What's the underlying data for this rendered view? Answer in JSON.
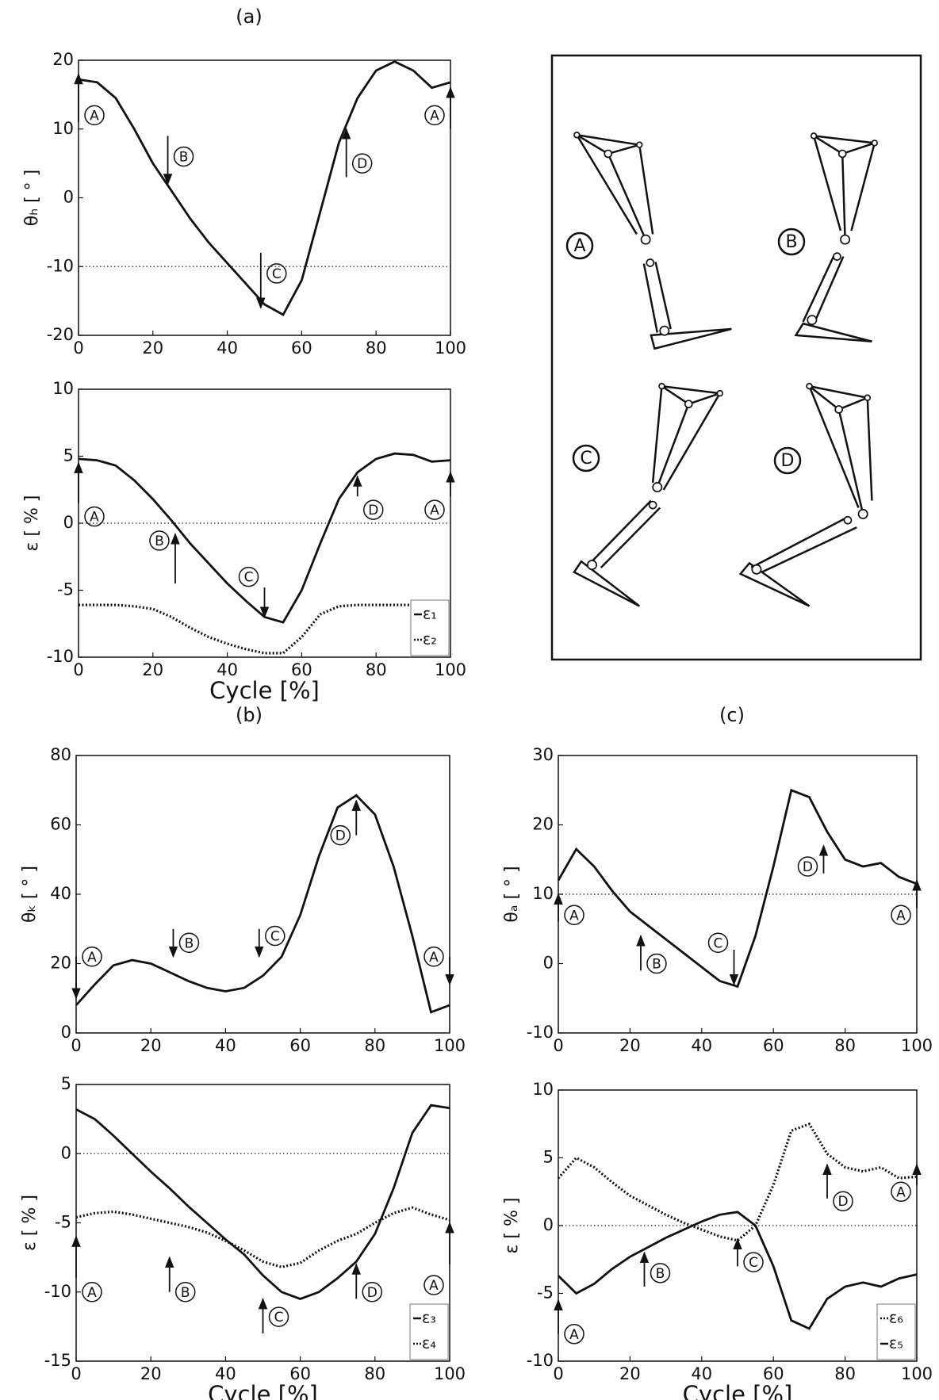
{
  "panel_titles": [
    "(a)",
    "(b)",
    "(c)"
  ],
  "diagram": {
    "labels": [
      "A",
      "B",
      "C",
      "D"
    ]
  },
  "chart_data": [
    {
      "type": "line",
      "ylabel": "θₕ [ ° ]",
      "xlim": [
        0,
        100
      ],
      "xticks": [
        0,
        20,
        40,
        60,
        80,
        100
      ],
      "ylim": [
        -20,
        20
      ],
      "yticks": [
        -20,
        -10,
        0,
        10,
        20
      ],
      "reference_lines": [
        -10
      ],
      "x": [
        0,
        5,
        10,
        15,
        20,
        25,
        30,
        35,
        40,
        45,
        50,
        55,
        60,
        65,
        70,
        75,
        80,
        85,
        90,
        95,
        100
      ],
      "color": "#111111",
      "values": [
        17.2,
        16.8,
        14.5,
        10,
        5,
        1,
        -3,
        -6.5,
        -9.5,
        -12.5,
        -15.5,
        -17,
        -12,
        -2,
        8,
        14.5,
        18.5,
        19.8,
        18.5,
        16,
        16.8
      ],
      "annotations": [
        {
          "text": "A",
          "x": 0
        },
        {
          "text": "B",
          "x": 24
        },
        {
          "text": "C",
          "x": 49
        },
        {
          "text": "D",
          "x": 72
        },
        {
          "text": "A",
          "x": 100
        }
      ]
    },
    {
      "type": "line",
      "ylabel": "ε [ % ]",
      "xlabel": "Cycle [%]",
      "xlim": [
        0,
        100
      ],
      "xticks": [
        0,
        20,
        40,
        60,
        80,
        100
      ],
      "ylim": [
        -10,
        10
      ],
      "yticks": [
        -10,
        -5,
        0,
        5,
        10
      ],
      "reference_lines": [
        0
      ],
      "legend": "lower right",
      "x": [
        0,
        5,
        10,
        15,
        20,
        25,
        30,
        35,
        40,
        45,
        50,
        55,
        60,
        65,
        70,
        75,
        80,
        85,
        90,
        95,
        100
      ],
      "series": [
        {
          "name": "ε₁",
          "color": "#111111",
          "style": "solid",
          "values": [
            4.8,
            4.7,
            4.3,
            3.2,
            1.8,
            0.2,
            -1.5,
            -3,
            -4.5,
            -5.8,
            -7,
            -7.4,
            -5,
            -1.5,
            1.8,
            3.8,
            4.8,
            5.2,
            5.1,
            4.6,
            4.7
          ]
        },
        {
          "name": "ε₂",
          "color": "#111111",
          "style": "dotted",
          "values": [
            -6.1,
            -6.1,
            -6.1,
            -6.2,
            -6.4,
            -7,
            -7.8,
            -8.5,
            -9,
            -9.4,
            -9.7,
            -9.7,
            -8.5,
            -6.8,
            -6.2,
            -6.1,
            -6.1,
            -6.1,
            -6.1,
            -6.1,
            -6.1
          ]
        }
      ],
      "annotations": [
        {
          "text": "A",
          "x": 0
        },
        {
          "text": "B",
          "x": 26
        },
        {
          "text": "C",
          "x": 50
        },
        {
          "text": "D",
          "x": 75
        },
        {
          "text": "A",
          "x": 100
        }
      ]
    },
    {
      "type": "line",
      "ylabel": "θₖ [ ° ]",
      "xlim": [
        0,
        100
      ],
      "xticks": [
        0,
        20,
        40,
        60,
        80,
        100
      ],
      "ylim": [
        0,
        80
      ],
      "yticks": [
        0,
        20,
        40,
        60,
        80
      ],
      "x": [
        0,
        5,
        10,
        15,
        20,
        25,
        30,
        35,
        40,
        45,
        50,
        55,
        60,
        65,
        70,
        75,
        80,
        85,
        90,
        95,
        100
      ],
      "color": "#111111",
      "values": [
        8,
        14,
        19.5,
        21,
        20,
        17.5,
        15,
        13,
        12,
        13,
        16.5,
        22,
        34,
        51,
        65,
        68.5,
        63,
        48,
        28,
        6,
        8
      ],
      "annotations": [
        {
          "text": "A",
          "x": 0
        },
        {
          "text": "B",
          "x": 26
        },
        {
          "text": "C",
          "x": 49
        },
        {
          "text": "D",
          "x": 75
        },
        {
          "text": "A",
          "x": 100
        }
      ]
    },
    {
      "type": "line",
      "ylabel": "ε [ % ]",
      "xlabel": "Cycle [%]",
      "xlim": [
        0,
        100
      ],
      "xticks": [
        0,
        20,
        40,
        60,
        80,
        100
      ],
      "ylim": [
        -15,
        5
      ],
      "yticks": [
        -15,
        -10,
        -5,
        0,
        5
      ],
      "reference_lines": [
        0
      ],
      "legend": "lower right",
      "x": [
        0,
        5,
        10,
        15,
        20,
        25,
        30,
        35,
        40,
        45,
        50,
        55,
        60,
        65,
        70,
        75,
        80,
        85,
        90,
        95,
        100
      ],
      "series": [
        {
          "name": "ε₃",
          "color": "#111111",
          "style": "solid",
          "values": [
            3.2,
            2.5,
            1.3,
            0,
            -1.3,
            -2.5,
            -3.8,
            -5,
            -6.2,
            -7.3,
            -8.8,
            -10,
            -10.5,
            -10,
            -9,
            -7.8,
            -5.8,
            -2.5,
            1.5,
            3.5,
            3.3
          ]
        },
        {
          "name": "ε₄",
          "color": "#111111",
          "style": "dotted",
          "values": [
            -4.6,
            -4.3,
            -4.2,
            -4.4,
            -4.7,
            -5,
            -5.3,
            -5.7,
            -6.3,
            -7,
            -7.8,
            -8.2,
            -7.9,
            -7,
            -6.3,
            -5.8,
            -5,
            -4.3,
            -3.9,
            -4.4,
            -4.8
          ]
        }
      ],
      "annotations": [
        {
          "text": "A",
          "x": 0
        },
        {
          "text": "B",
          "x": 25
        },
        {
          "text": "C",
          "x": 50
        },
        {
          "text": "D",
          "x": 75
        },
        {
          "text": "A",
          "x": 100
        }
      ]
    },
    {
      "type": "line",
      "ylabel": "θₐ [ ° ]",
      "xlim": [
        0,
        100
      ],
      "xticks": [
        0,
        20,
        40,
        60,
        80,
        100
      ],
      "ylim": [
        -10,
        30
      ],
      "yticks": [
        -10,
        0,
        10,
        20,
        30
      ],
      "reference_lines": [
        10
      ],
      "x": [
        0,
        5,
        10,
        15,
        20,
        25,
        30,
        35,
        40,
        45,
        50,
        55,
        60,
        65,
        70,
        75,
        80,
        85,
        90,
        95,
        100
      ],
      "color": "#111111",
      "values": [
        12,
        16.5,
        14,
        10.5,
        7.5,
        5.5,
        3.5,
        1.5,
        -0.5,
        -2.5,
        -3.3,
        4,
        14,
        25,
        24,
        19,
        15,
        14,
        14.5,
        12.5,
        11.5
      ],
      "annotations": [
        {
          "text": "A",
          "x": 0
        },
        {
          "text": "B",
          "x": 23
        },
        {
          "text": "C",
          "x": 49
        },
        {
          "text": "D",
          "x": 74
        },
        {
          "text": "A",
          "x": 100
        }
      ]
    },
    {
      "type": "line",
      "ylabel": "ε [ % ]",
      "xlabel": "Cycle [%]",
      "xlim": [
        0,
        100
      ],
      "xticks": [
        0,
        20,
        40,
        60,
        80,
        100
      ],
      "ylim": [
        -10,
        10
      ],
      "yticks": [
        -10,
        -5,
        0,
        5,
        10
      ],
      "reference_lines": [
        0
      ],
      "legend": "lower right",
      "x": [
        0,
        5,
        10,
        15,
        20,
        25,
        30,
        35,
        40,
        45,
        50,
        55,
        60,
        65,
        70,
        75,
        80,
        85,
        90,
        95,
        100
      ],
      "series": [
        {
          "name": "ε₆",
          "color": "#111111",
          "style": "dotted",
          "values": [
            3.5,
            5,
            4.3,
            3.2,
            2.2,
            1.5,
            0.8,
            0.2,
            -0.3,
            -0.8,
            -1.1,
            0,
            3,
            7,
            7.5,
            5.3,
            4.3,
            4,
            4.3,
            3.5,
            3.6
          ]
        },
        {
          "name": "ε₅",
          "color": "#111111",
          "style": "solid",
          "values": [
            -3.7,
            -5,
            -4.3,
            -3.2,
            -2.3,
            -1.6,
            -0.9,
            -0.3,
            0.3,
            0.8,
            1,
            0,
            -3,
            -7,
            -7.6,
            -5.4,
            -4.5,
            -4.2,
            -4.5,
            -3.9,
            -3.6
          ]
        }
      ],
      "annotations": [
        {
          "text": "A",
          "x": 0
        },
        {
          "text": "B",
          "x": 24
        },
        {
          "text": "C",
          "x": 50
        },
        {
          "text": "D",
          "x": 75
        },
        {
          "text": "A",
          "x": 100
        }
      ]
    }
  ]
}
